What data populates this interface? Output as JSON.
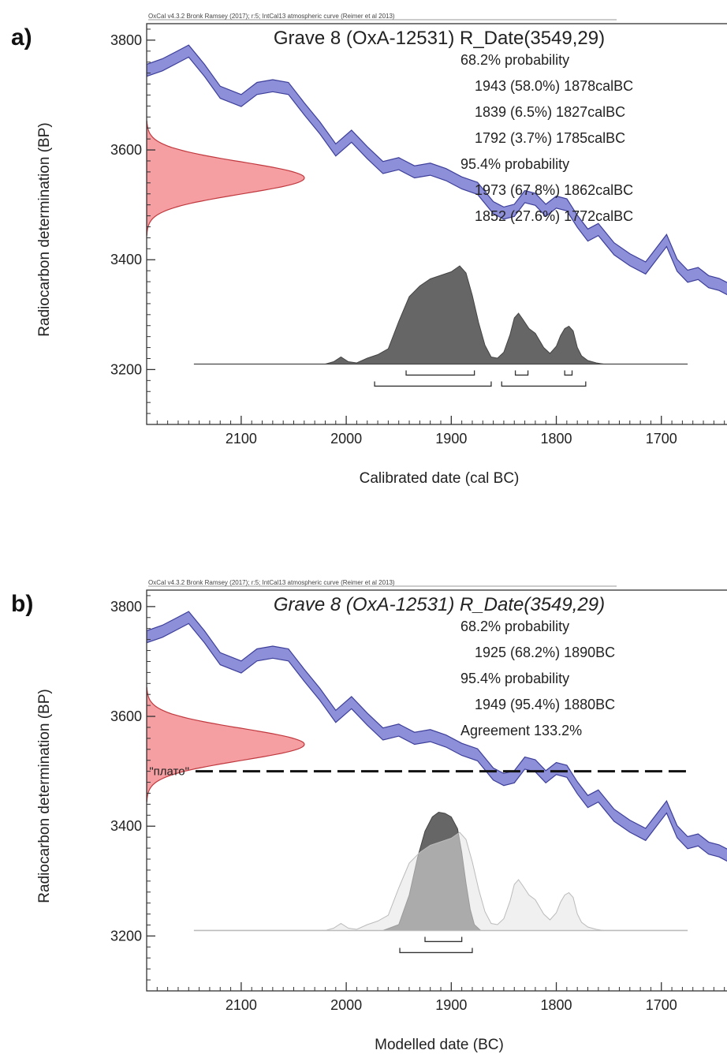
{
  "chart_data": [
    {
      "panel": "a)",
      "type": "area",
      "header": "OxCal v4.3.2 Bronk Ramsey (2017); r:5; IntCal13 atmospheric curve (Reimer et al 2013)",
      "title": "Grave 8 (OxA-12531) R_Date(3549,29)",
      "title_italic": false,
      "xlabel": "Calibrated date (cal BC)",
      "ylabel": "Radiocarbon determination (BP)",
      "xlim": [
        2190,
        1630
      ],
      "ylim": [
        3100,
        3830
      ],
      "xticks": [
        2100,
        2000,
        1900,
        1800,
        1700
      ],
      "yticks": [
        3200,
        3400,
        3600,
        3800
      ],
      "stats_lines": [
        {
          "text": "68.2% probability",
          "indent": false
        },
        {
          "text": "1943 (58.0%) 1878calBC",
          "indent": true
        },
        {
          "text": "1839 (6.5%) 1827calBC",
          "indent": true
        },
        {
          "text": "1792 (3.7%) 1785calBC",
          "indent": true
        },
        {
          "text": "95.4% probability",
          "indent": false
        },
        {
          "text": "1973 (67.8%) 1862calBC",
          "indent": true
        },
        {
          "text": "1852 (27.6%) 1772calBC",
          "indent": true
        }
      ],
      "calibration_curve": {
        "color": "#8d8fd8",
        "x": [
          2190,
          2175,
          2160,
          2150,
          2135,
          2120,
          2100,
          2085,
          2070,
          2055,
          2040,
          2025,
          2010,
          1995,
          1980,
          1965,
          1950,
          1935,
          1920,
          1905,
          1890,
          1875,
          1860,
          1850,
          1840,
          1830,
          1820,
          1810,
          1800,
          1790,
          1780,
          1770,
          1760,
          1745,
          1730,
          1715,
          1705,
          1695,
          1685,
          1675,
          1665,
          1655,
          1645,
          1630
        ],
        "y": [
          3745,
          3755,
          3770,
          3780,
          3745,
          3705,
          3690,
          3712,
          3717,
          3712,
          3675,
          3640,
          3600,
          3625,
          3595,
          3568,
          3575,
          3560,
          3565,
          3555,
          3540,
          3530,
          3495,
          3485,
          3490,
          3515,
          3510,
          3490,
          3505,
          3500,
          3470,
          3445,
          3455,
          3420,
          3400,
          3385,
          3410,
          3435,
          3390,
          3370,
          3375,
          3360,
          3355,
          3340
        ],
        "half_width": 11
      },
      "radiocarbon_date": {
        "mean": 3549,
        "sigma": 29,
        "color": "#f59fa2"
      },
      "posterior": {
        "color": "#666666",
        "x": [
          2145,
          2020,
          2012,
          2005,
          1998,
          1990,
          1980,
          1970,
          1960,
          1950,
          1940,
          1930,
          1920,
          1910,
          1900,
          1892,
          1886,
          1880,
          1874,
          1868,
          1862,
          1856,
          1850,
          1844,
          1840,
          1836,
          1832,
          1826,
          1820,
          1812,
          1806,
          1800,
          1796,
          1792,
          1788,
          1784,
          1780,
          1776,
          1770,
          1762,
          1755,
          1675
        ],
        "y": [
          0,
          0,
          0.02,
          0.06,
          0.02,
          0.01,
          0.05,
          0.08,
          0.13,
          0.36,
          0.57,
          0.66,
          0.72,
          0.75,
          0.78,
          0.83,
          0.77,
          0.58,
          0.35,
          0.16,
          0.06,
          0.05,
          0.1,
          0.25,
          0.39,
          0.43,
          0.38,
          0.3,
          0.26,
          0.14,
          0.09,
          0.15,
          0.24,
          0.3,
          0.32,
          0.28,
          0.14,
          0.07,
          0.03,
          0.01,
          0,
          0
        ]
      },
      "ranges_68": [
        [
          1943,
          1878
        ],
        [
          1839,
          1827
        ],
        [
          1792,
          1785
        ]
      ],
      "ranges_95": [
        [
          1973,
          1862
        ],
        [
          1852,
          1772
        ]
      ]
    },
    {
      "panel": "b)",
      "type": "area",
      "header": "OxCal v4.3.2 Bronk Ramsey (2017); r:5; IntCal13 atmospheric curve (Reimer et al 2013)",
      "title": "Grave 8 (OxA-12531) R_Date(3549,29)",
      "title_italic": true,
      "xlabel": "Modelled date (BC)",
      "ylabel": "Radiocarbon determination (BP)",
      "xlim": [
        2190,
        1630
      ],
      "ylim": [
        3100,
        3830
      ],
      "xticks": [
        2100,
        2000,
        1900,
        1800,
        1700
      ],
      "yticks": [
        3200,
        3400,
        3600,
        3800
      ],
      "stats_lines": [
        {
          "text": "68.2% probability",
          "indent": false
        },
        {
          "text": "1925 (68.2%) 1890BC",
          "indent": true
        },
        {
          "text": "95.4% probability",
          "indent": false
        },
        {
          "text": "1949 (95.4%) 1880BC",
          "indent": true
        },
        {
          "text": "Agreement 133.2%",
          "indent": false
        }
      ],
      "plateau": {
        "label": "\"плато\"",
        "y": 3500,
        "x_from": 2145,
        "x_to": 1675
      },
      "calibration_curve": {
        "color": "#8d8fd8",
        "x": [
          2190,
          2175,
          2160,
          2150,
          2135,
          2120,
          2100,
          2085,
          2070,
          2055,
          2040,
          2025,
          2010,
          1995,
          1980,
          1965,
          1950,
          1935,
          1920,
          1905,
          1890,
          1875,
          1860,
          1850,
          1840,
          1830,
          1820,
          1810,
          1800,
          1790,
          1780,
          1770,
          1760,
          1745,
          1730,
          1715,
          1705,
          1695,
          1685,
          1675,
          1665,
          1655,
          1645,
          1630
        ],
        "y": [
          3745,
          3755,
          3770,
          3780,
          3745,
          3705,
          3690,
          3712,
          3717,
          3712,
          3675,
          3640,
          3600,
          3625,
          3595,
          3568,
          3575,
          3560,
          3565,
          3555,
          3540,
          3530,
          3495,
          3485,
          3490,
          3515,
          3510,
          3490,
          3505,
          3500,
          3470,
          3445,
          3455,
          3420,
          3400,
          3385,
          3410,
          3435,
          3390,
          3370,
          3375,
          3360,
          3355,
          3340
        ],
        "half_width": 11
      },
      "radiocarbon_date": {
        "mean": 3549,
        "sigma": 29,
        "color": "#f59fa2"
      },
      "prior": {
        "color": "#e3e3e3",
        "x": [
          2145,
          2020,
          2012,
          2005,
          1998,
          1990,
          1980,
          1970,
          1960,
          1950,
          1940,
          1930,
          1920,
          1910,
          1900,
          1892,
          1886,
          1880,
          1874,
          1868,
          1862,
          1856,
          1850,
          1844,
          1840,
          1836,
          1832,
          1826,
          1820,
          1812,
          1806,
          1800,
          1796,
          1792,
          1788,
          1784,
          1780,
          1776,
          1770,
          1762,
          1755,
          1675
        ],
        "y": [
          0,
          0,
          0.02,
          0.06,
          0.02,
          0.01,
          0.05,
          0.08,
          0.13,
          0.36,
          0.57,
          0.66,
          0.72,
          0.75,
          0.78,
          0.83,
          0.77,
          0.58,
          0.35,
          0.16,
          0.06,
          0.05,
          0.1,
          0.25,
          0.39,
          0.43,
          0.38,
          0.3,
          0.26,
          0.14,
          0.09,
          0.15,
          0.24,
          0.3,
          0.32,
          0.28,
          0.14,
          0.07,
          0.03,
          0.01,
          0,
          0
        ]
      },
      "posterior": {
        "color": "#666666",
        "x": [
          1965,
          1950,
          1940,
          1932,
          1925,
          1918,
          1912,
          1906,
          1900,
          1894,
          1890,
          1886,
          1882,
          1878,
          1872
        ],
        "y": [
          0,
          0.05,
          0.3,
          0.62,
          0.84,
          0.96,
          1.0,
          0.99,
          0.96,
          0.86,
          0.66,
          0.4,
          0.18,
          0.05,
          0
        ]
      },
      "ranges_68": [
        [
          1925,
          1890
        ]
      ],
      "ranges_95": [
        [
          1949,
          1880
        ]
      ]
    }
  ]
}
